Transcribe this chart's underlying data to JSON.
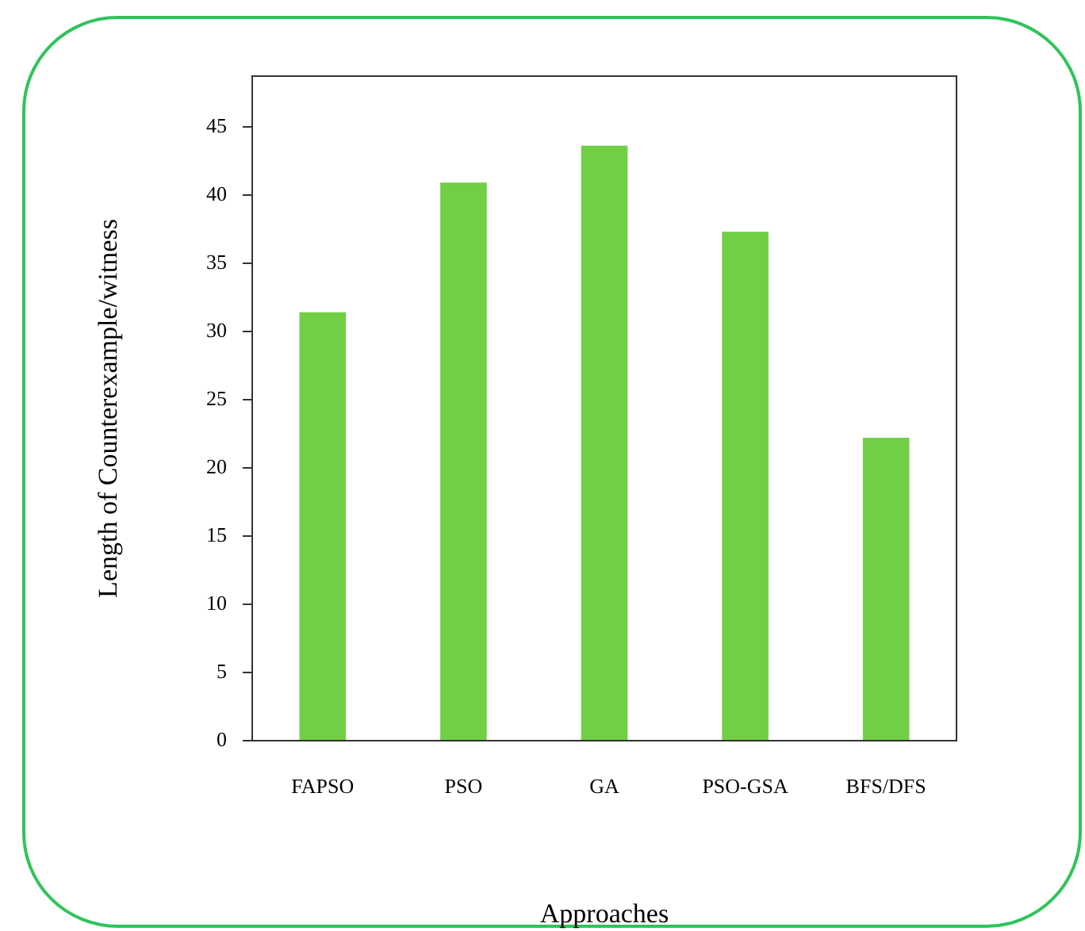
{
  "chart_data": {
    "type": "bar",
    "xlabel": "Approaches",
    "ylabel": "Length of Counterexample/witness",
    "categories": [
      "FAPSO",
      "PSO",
      "GA",
      "PSO-GSA",
      "BFS/DFS"
    ],
    "values": [
      31.4,
      40.9,
      43.6,
      37.3,
      22.2
    ],
    "color": "#70cf44",
    "ylim": [
      0,
      48.7
    ],
    "yticks": [
      0,
      5,
      10,
      15,
      20,
      25,
      30,
      35,
      40,
      45
    ],
    "grid": false,
    "legend": false
  }
}
